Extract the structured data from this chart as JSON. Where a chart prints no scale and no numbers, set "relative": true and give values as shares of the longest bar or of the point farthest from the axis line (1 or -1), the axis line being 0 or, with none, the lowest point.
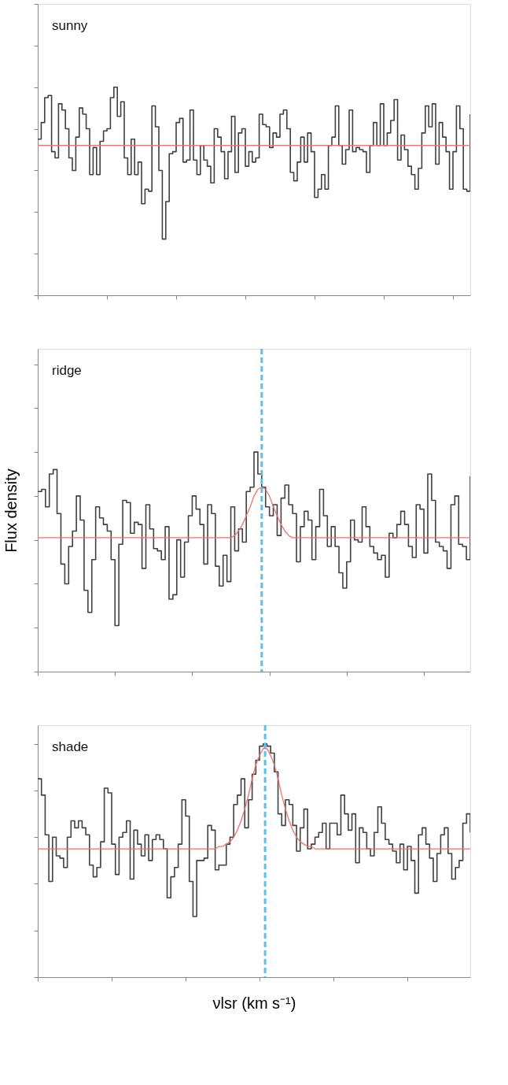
{
  "chart_data": [
    {
      "type": "step",
      "relative": true,
      "tick_labels": false,
      "line_style": "solid",
      "annotations": [
        "sunny"
      ],
      "categories": [
        null,
        null,
        null,
        null,
        null,
        null,
        null,
        null,
        null,
        null,
        null,
        null,
        null,
        null,
        null,
        null,
        null,
        null,
        null,
        null,
        null,
        null,
        null,
        null,
        null,
        null,
        null,
        null,
        null,
        null,
        null,
        null,
        null,
        null,
        null,
        null,
        null,
        null,
        null,
        null,
        null,
        null,
        null,
        null,
        null,
        null,
        null,
        null,
        null,
        null,
        null,
        null,
        null,
        null,
        null,
        null,
        null,
        null,
        null,
        null,
        null,
        null,
        null,
        null,
        null,
        null,
        null,
        null,
        null,
        null,
        null,
        null,
        null,
        null,
        null,
        null,
        null,
        null,
        null,
        null,
        null,
        null,
        null,
        null,
        null,
        null,
        null,
        null,
        null,
        null,
        null,
        null,
        null,
        null,
        null,
        null,
        null,
        null,
        null,
        null,
        null,
        null,
        null,
        null,
        null,
        null,
        null,
        null,
        null,
        null,
        null,
        null,
        null,
        null,
        null,
        null,
        null,
        null,
        null,
        null,
        null,
        null,
        null,
        null,
        null,
        null
      ],
      "series": [
        {
          "color": "#404040",
          "values": [
            0.75,
            0.83,
            0.95,
            0.96,
            0.69,
            0.66,
            0.92,
            0.89,
            0.8,
            0.66,
            0.6,
            0.76,
            0.9,
            0.87,
            0.8,
            0.58,
            0.71,
            0.58,
            0.74,
            0.79,
            0.8,
            0.95,
            1.0,
            0.86,
            0.93,
            0.66,
            0.58,
            0.75,
            0.58,
            0.64,
            0.44,
            0.51,
            0.5,
            0.91,
            0.81,
            0.6,
            0.27,
            0.45,
            0.68,
            0.69,
            0.83,
            0.85,
            0.64,
            0.65,
            0.89,
            0.65,
            0.58,
            0.72,
            0.65,
            0.62,
            0.54,
            0.8,
            0.76,
            0.69,
            0.56,
            0.69,
            0.86,
            0.59,
            0.78,
            0.8,
            0.62,
            0.69,
            0.64,
            0.66,
            0.87,
            0.82,
            0.81,
            0.71,
            0.78,
            0.76,
            0.87,
            0.89,
            0.8,
            0.59,
            0.55,
            0.64,
            0.76,
            0.64,
            0.78,
            0.69,
            0.47,
            0.51,
            0.58,
            0.51,
            0.72,
            0.76,
            0.91,
            0.72,
            0.63,
            0.7,
            0.89,
            0.69,
            0.71,
            0.7,
            0.69,
            0.59,
            0.72,
            0.83,
            0.72,
            0.92,
            0.72,
            0.78,
            0.84,
            0.94,
            0.65,
            0.77,
            0.7,
            0.62,
            0.58,
            0.51,
            0.61,
            0.78,
            0.91,
            0.81,
            0.92,
            0.63,
            0.83,
            0.76,
            0.69,
            0.51,
            0.69,
            0.91,
            0.8,
            0.51,
            0.5,
            0.87
          ]
        }
      ],
      "ref_lines": [
        {
          "axis": "y",
          "value": 0.72,
          "color": "#f07070",
          "line_style": "solid"
        }
      ]
    },
    {
      "type": "step",
      "relative": true,
      "tick_labels": false,
      "line_style": "solid",
      "ylabel": "Flux density",
      "annotations": [
        "ridge"
      ],
      "categories": [
        null,
        null,
        null,
        null,
        null,
        null,
        null,
        null,
        null,
        null,
        null,
        null,
        null,
        null,
        null,
        null,
        null,
        null,
        null,
        null,
        null,
        null,
        null,
        null,
        null,
        null,
        null,
        null,
        null,
        null,
        null,
        null,
        null,
        null,
        null,
        null,
        null,
        null,
        null,
        null,
        null,
        null,
        null,
        null,
        null,
        null,
        null,
        null,
        null,
        null,
        null,
        null,
        null,
        null,
        null,
        null,
        null,
        null,
        null,
        null,
        null,
        null,
        null,
        null,
        null,
        null,
        null,
        null,
        null,
        null,
        null,
        null,
        null,
        null,
        null,
        null,
        null,
        null,
        null,
        null,
        null,
        null,
        null,
        null,
        null,
        null,
        null,
        null,
        null,
        null,
        null,
        null,
        null,
        null,
        null,
        null,
        null,
        null,
        null,
        null,
        null,
        null,
        null,
        null,
        null,
        null,
        null,
        null,
        null,
        null,
        null,
        null,
        null
      ],
      "series": [
        {
          "color": "#404040",
          "values": [
            0.82,
            0.83,
            0.75,
            0.9,
            0.92,
            0.72,
            0.49,
            0.4,
            0.57,
            0.64,
            0.8,
            0.69,
            0.37,
            0.27,
            0.51,
            0.75,
            0.7,
            0.67,
            0.64,
            0.51,
            0.21,
            0.58,
            0.78,
            0.77,
            0.63,
            0.68,
            0.67,
            0.47,
            0.76,
            0.65,
            0.56,
            0.55,
            0.51,
            0.66,
            0.33,
            0.35,
            0.6,
            0.43,
            0.59,
            0.71,
            0.8,
            0.74,
            0.67,
            0.49,
            0.76,
            0.72,
            0.48,
            0.39,
            0.53,
            0.41,
            0.75,
            0.55,
            0.65,
            0.59,
            0.82,
            0.84,
            1.0,
            0.9,
            0.84,
            0.75,
            0.71,
            0.76,
            0.62,
            0.79,
            0.85,
            0.76,
            0.72,
            0.5,
            0.66,
            0.73,
            0.69,
            0.51,
            0.66,
            0.83,
            0.71,
            0.57,
            0.66,
            0.57,
            0.45,
            0.38,
            0.5,
            0.69,
            0.6,
            0.59,
            0.75,
            0.66,
            0.57,
            0.54,
            0.51,
            0.53,
            0.43,
            0.63,
            0.61,
            0.67,
            0.73,
            0.67,
            0.57,
            0.52,
            0.76,
            0.74,
            0.54,
            0.9,
            0.78,
            0.59,
            0.57,
            0.55,
            0.47,
            0.76,
            0.8,
            0.58,
            0.57,
            0.51,
            0.89
          ]
        },
        {
          "type": "line",
          "color": "#f07070",
          "values": [
            0.61,
            0.61,
            0.61,
            0.61,
            0.61,
            0.61,
            0.61,
            0.61,
            0.61,
            0.61,
            0.61,
            0.61,
            0.61,
            0.61,
            0.61,
            0.61,
            0.61,
            0.61,
            0.61,
            0.61,
            0.61,
            0.61,
            0.61,
            0.61,
            0.61,
            0.61,
            0.61,
            0.61,
            0.61,
            0.61,
            0.61,
            0.61,
            0.61,
            0.61,
            0.61,
            0.61,
            0.61,
            0.61,
            0.61,
            0.61,
            0.61,
            0.61,
            0.61,
            0.61,
            0.61,
            0.61,
            0.61,
            0.61,
            0.61,
            0.61,
            0.61,
            0.62,
            0.64,
            0.67,
            0.71,
            0.75,
            0.8,
            0.83,
            0.84,
            0.83,
            0.8,
            0.75,
            0.71,
            0.67,
            0.64,
            0.62,
            0.61,
            0.61,
            0.61,
            0.61,
            0.61,
            0.61,
            0.61,
            0.61,
            0.61,
            0.61,
            0.61,
            0.61,
            0.61,
            0.61,
            0.61,
            0.61,
            0.61,
            0.61,
            0.61,
            0.61,
            0.61,
            0.61,
            0.61,
            0.61,
            0.61,
            0.61,
            0.61,
            0.61,
            0.61,
            0.61,
            0.61,
            0.61,
            0.61,
            0.61,
            0.61,
            0.61,
            0.61,
            0.61,
            0.61,
            0.61,
            0.61,
            0.61,
            0.61,
            0.61,
            0.61,
            0.61,
            0.61
          ]
        }
      ]
    },
    {
      "type": "step",
      "relative": true,
      "tick_labels": false,
      "line_style": "solid",
      "xlabel": "νlsr (km s⁻¹)",
      "annotations": [
        "shade"
      ],
      "categories": [
        null,
        null,
        null,
        null,
        null,
        null,
        null,
        null,
        null,
        null,
        null,
        null,
        null,
        null,
        null,
        null,
        null,
        null,
        null,
        null,
        null,
        null,
        null,
        null,
        null,
        null,
        null,
        null,
        null,
        null,
        null,
        null,
        null,
        null,
        null,
        null,
        null,
        null,
        null,
        null,
        null,
        null,
        null,
        null,
        null,
        null,
        null,
        null,
        null,
        null,
        null,
        null,
        null,
        null,
        null,
        null,
        null,
        null,
        null,
        null,
        null,
        null,
        null,
        null,
        null,
        null,
        null,
        null,
        null,
        null,
        null,
        null,
        null,
        null,
        null,
        null,
        null,
        null,
        null,
        null,
        null,
        null,
        null,
        null,
        null,
        null,
        null,
        null,
        null,
        null,
        null,
        null,
        null,
        null,
        null,
        null,
        null,
        null,
        null,
        null,
        null,
        null,
        null,
        null,
        null,
        null,
        null,
        null,
        null,
        null,
        null,
        null,
        null,
        null,
        null,
        null,
        null,
        null
      ],
      "series": [
        {
          "color": "#404040",
          "values": [
            0.85,
            0.78,
            0.61,
            0.41,
            0.6,
            0.52,
            0.51,
            0.47,
            0.6,
            0.67,
            0.64,
            0.67,
            0.64,
            0.61,
            0.48,
            0.43,
            0.47,
            0.58,
            0.81,
            0.79,
            0.57,
            0.44,
            0.6,
            0.62,
            0.67,
            0.42,
            0.63,
            0.57,
            0.52,
            0.61,
            0.5,
            0.59,
            0.61,
            0.59,
            0.55,
            0.34,
            0.43,
            0.47,
            0.57,
            0.76,
            0.69,
            0.41,
            0.26,
            0.5,
            0.5,
            0.51,
            0.65,
            0.63,
            0.46,
            0.48,
            0.48,
            0.57,
            0.6,
            0.74,
            0.78,
            0.85,
            0.64,
            0.76,
            0.87,
            0.93,
            0.99,
            1.0,
            0.99,
            0.96,
            0.88,
            0.7,
            0.65,
            0.76,
            0.74,
            0.65,
            0.54,
            0.64,
            0.72,
            0.55,
            0.57,
            0.6,
            0.62,
            0.66,
            0.55,
            0.66,
            0.66,
            0.61,
            0.78,
            0.7,
            0.63,
            0.7,
            0.49,
            0.64,
            0.62,
            0.55,
            0.52,
            0.62,
            0.73,
            0.66,
            0.59,
            0.57,
            0.54,
            0.49,
            0.57,
            0.46,
            0.56,
            0.5,
            0.36,
            0.61,
            0.64,
            0.57,
            0.51,
            0.41,
            0.53,
            0.61,
            0.64,
            0.53,
            0.42,
            0.47,
            0.5,
            0.66,
            0.7,
            0.62
          ]
        },
        {
          "type": "line",
          "color": "#f07070",
          "values": [
            0.55,
            0.55,
            0.55,
            0.55,
            0.55,
            0.55,
            0.55,
            0.55,
            0.55,
            0.55,
            0.55,
            0.55,
            0.55,
            0.55,
            0.55,
            0.55,
            0.55,
            0.55,
            0.55,
            0.55,
            0.55,
            0.55,
            0.55,
            0.55,
            0.55,
            0.55,
            0.55,
            0.55,
            0.55,
            0.55,
            0.55,
            0.55,
            0.55,
            0.55,
            0.55,
            0.55,
            0.55,
            0.55,
            0.55,
            0.55,
            0.55,
            0.55,
            0.55,
            0.55,
            0.55,
            0.55,
            0.55,
            0.55,
            0.55,
            0.56,
            0.56,
            0.57,
            0.58,
            0.6,
            0.63,
            0.67,
            0.72,
            0.78,
            0.85,
            0.91,
            0.95,
            0.98,
            0.98,
            0.95,
            0.91,
            0.85,
            0.78,
            0.72,
            0.67,
            0.63,
            0.6,
            0.58,
            0.57,
            0.56,
            0.56,
            0.55,
            0.55,
            0.55,
            0.55,
            0.55,
            0.55,
            0.55,
            0.55,
            0.55,
            0.55,
            0.55,
            0.55,
            0.55,
            0.55,
            0.55,
            0.55,
            0.55,
            0.55,
            0.55,
            0.55,
            0.55,
            0.55,
            0.55,
            0.55,
            0.55,
            0.55,
            0.55,
            0.55,
            0.55,
            0.55,
            0.55,
            0.55,
            0.55,
            0.55,
            0.55,
            0.55,
            0.55,
            0.55,
            0.55,
            0.55,
            0.55,
            0.55,
            0.55
          ]
        }
      ]
    }
  ]
}
